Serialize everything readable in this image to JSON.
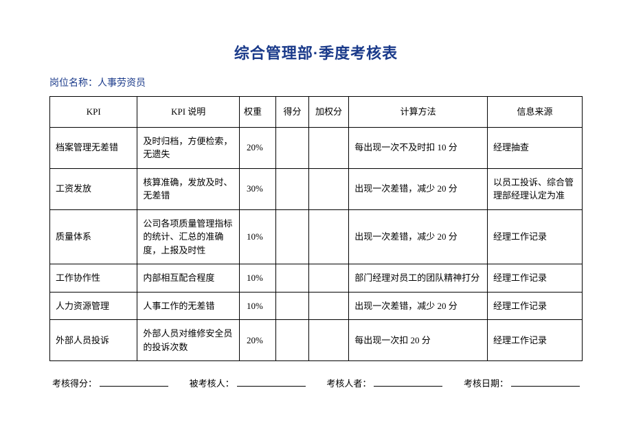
{
  "title": "综合管理部·季度考核表",
  "subtitle_label": "岗位名称：",
  "subtitle_value": "人事劳资员",
  "columns": [
    "KPI",
    "KPI 说明",
    "权重",
    "得分",
    "加权分",
    "计算方法",
    "信息来源"
  ],
  "rows": [
    {
      "kpi": "档案管理无差错",
      "desc": "及时归档，方便检索，无遗失",
      "weight": "20%",
      "score": "",
      "wscore": "",
      "method": "每出现一次不及时扣 10 分",
      "source": "经理抽查"
    },
    {
      "kpi": "工资发放",
      "desc": "核算准确，发放及时、无差错",
      "weight": "30%",
      "score": "",
      "wscore": "",
      "method": "出现一次差错，减少 20 分",
      "source": "以员工投诉、综合管理部经理认定为准"
    },
    {
      "kpi": "质量体系",
      "desc": "公司各项质量管理指标的统计、汇总的准确度，上报及时性",
      "weight": "10%",
      "score": "",
      "wscore": "",
      "method": "出现一次差错，减少 20 分",
      "source": "经理工作记录"
    },
    {
      "kpi": "工作协作性",
      "desc": "内部相互配合程度",
      "weight": "10%",
      "score": "",
      "wscore": "",
      "method": "部门经理对员工的团队精神打分",
      "source": "经理工作记录"
    },
    {
      "kpi": "人力资源管理",
      "desc": "人事工作的无差错",
      "weight": "10%",
      "score": "",
      "wscore": "",
      "method": "出现一次差错，减少 20 分",
      "source": "经理工作记录"
    },
    {
      "kpi": "外部人员投诉",
      "desc": "外部人员对维修安全员的投诉次数",
      "weight": "20%",
      "score": "",
      "wscore": "",
      "method": "每出现一次扣 20 分",
      "source": "经理工作记录"
    }
  ],
  "footer": {
    "score_label": "考核得分：",
    "assessee_label": "被考核人：",
    "assessor_label": "考核人者：",
    "date_label": "考核日期："
  },
  "colors": {
    "title_color": "#1a3a8a",
    "text_color": "#000000",
    "border_color": "#000000",
    "background": "#ffffff"
  }
}
